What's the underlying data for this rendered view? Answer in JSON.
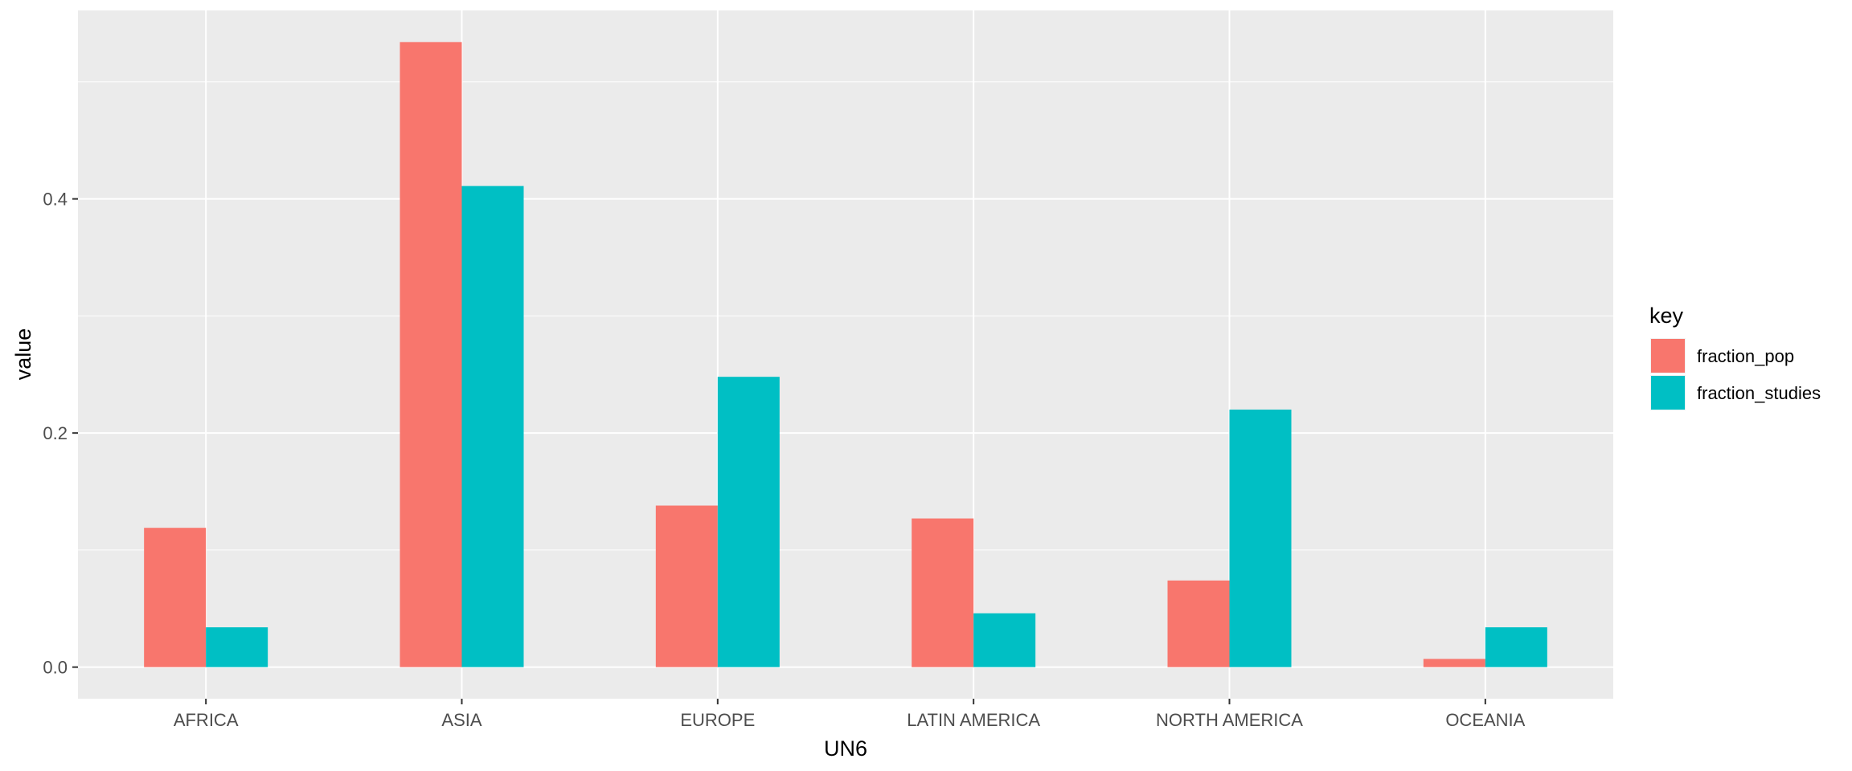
{
  "chart_data": {
    "type": "bar",
    "xlabel": "UN6",
    "ylabel": "value",
    "categories": [
      "AFRICA",
      "ASIA",
      "EUROPE",
      "LATIN AMERICA",
      "NORTH AMERICA",
      "OCEANIA"
    ],
    "series": [
      {
        "name": "fraction_pop",
        "color": "#F8766D",
        "values": [
          0.119,
          0.534,
          0.138,
          0.127,
          0.074,
          0.007
        ]
      },
      {
        "name": "fraction_studies",
        "color": "#00BFC4",
        "values": [
          0.034,
          0.411,
          0.248,
          0.046,
          0.22,
          0.034
        ]
      }
    ],
    "ylim": [
      -0.027,
      0.561
    ],
    "yticks": [
      0.0,
      0.2,
      0.4
    ],
    "ytick_labels": [
      "0.0",
      "0.2",
      "0.4"
    ],
    "grid": true,
    "panel_background": "#EBEBEB",
    "legend": {
      "title": "key",
      "position": "right"
    }
  }
}
